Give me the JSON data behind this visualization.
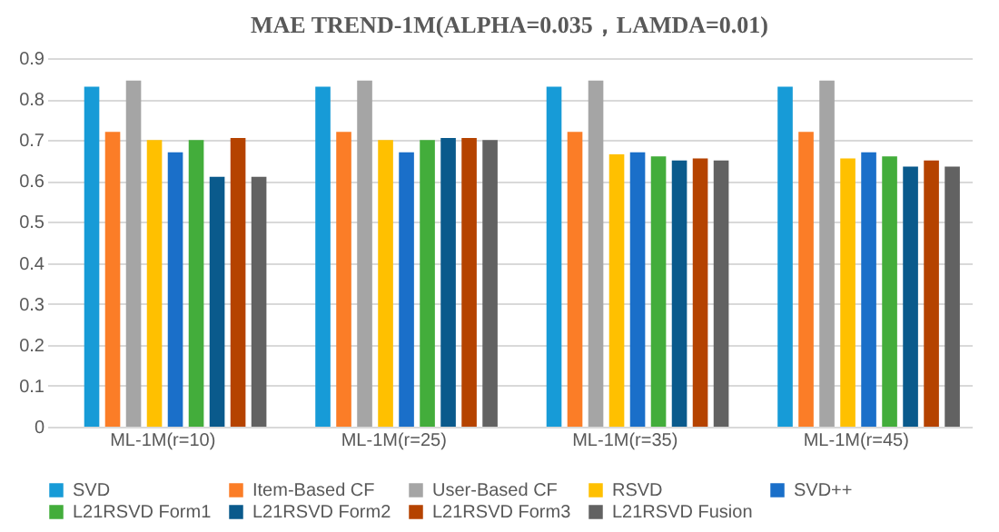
{
  "chart_data": {
    "type": "bar",
    "title": "MAE TREND-1M(ALPHA=0.035，LAMDA=0.01)",
    "categories": [
      "ML-1M(r=10)",
      "ML-1M(r=25)",
      "ML-1M(r=35)",
      "ML-1M(r=45)"
    ],
    "series": [
      {
        "name": "SVD",
        "color": "#179bd7",
        "values": [
          0.83,
          0.83,
          0.83,
          0.83
        ]
      },
      {
        "name": "Item-Based CF",
        "color": "#fb7d27",
        "values": [
          0.72,
          0.72,
          0.72,
          0.72
        ]
      },
      {
        "name": "User-Based CF",
        "color": "#a5a5a5",
        "values": [
          0.845,
          0.845,
          0.845,
          0.845
        ]
      },
      {
        "name": "RSVD",
        "color": "#ffc000",
        "values": [
          0.7,
          0.7,
          0.665,
          0.655
        ]
      },
      {
        "name": "SVD++",
        "color": "#1a6fc9",
        "values": [
          0.67,
          0.67,
          0.67,
          0.67
        ]
      },
      {
        "name": "L21RSVD Form1",
        "color": "#43ad3b",
        "values": [
          0.7,
          0.7,
          0.66,
          0.66
        ]
      },
      {
        "name": "L21RSVD Form2",
        "color": "#0a5a8c",
        "values": [
          0.61,
          0.705,
          0.65,
          0.635
        ]
      },
      {
        "name": "L21RSVD Form3",
        "color": "#b54300",
        "values": [
          0.705,
          0.705,
          0.655,
          0.65
        ]
      },
      {
        "name": "L21RSVD Fusion",
        "color": "#626262",
        "values": [
          0.61,
          0.7,
          0.65,
          0.635
        ]
      }
    ],
    "ylim": [
      0,
      0.9
    ],
    "yticks": [
      0,
      0.1,
      0.2,
      0.3,
      0.4,
      0.5,
      0.6,
      0.7,
      0.8,
      0.9
    ],
    "grid": "y",
    "legend": "bottom"
  }
}
